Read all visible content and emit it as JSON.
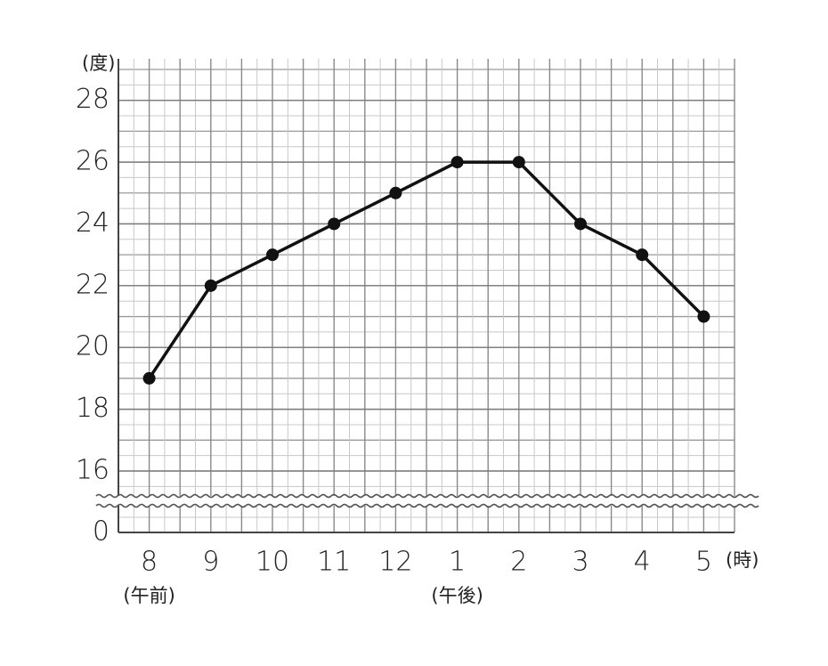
{
  "chart_data": {
    "type": "line",
    "y_unit": "(度)",
    "x_unit": "(時)",
    "categories": [
      "8",
      "9",
      "10",
      "11",
      "12",
      "1",
      "2",
      "3",
      "4",
      "5"
    ],
    "x_sublabels": [
      "(午前)",
      null,
      null,
      null,
      null,
      "(午後)",
      null,
      null,
      null,
      null
    ],
    "series": [
      {
        "color": "#111111",
        "values": [
          19,
          22,
          23,
          24,
          25,
          26,
          26,
          24,
          23,
          21
        ]
      }
    ],
    "ylim": [
      16,
      29
    ],
    "yticks": [
      0,
      16,
      18,
      20,
      22,
      24,
      26,
      28
    ],
    "axis_break": true,
    "grid": true
  }
}
